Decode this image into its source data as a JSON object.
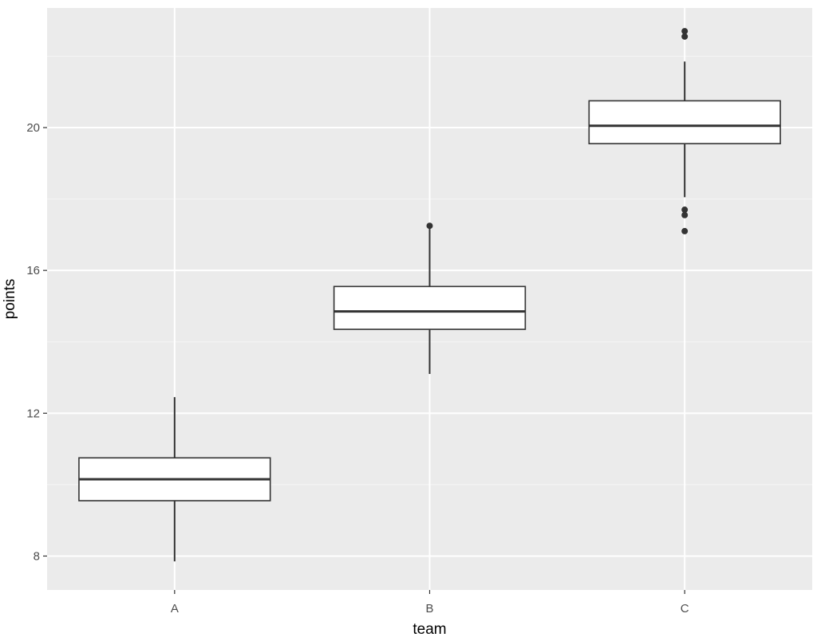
{
  "chart_data": {
    "type": "box",
    "xlabel": "team",
    "ylabel": "points",
    "ylim": [
      7.05,
      23.35
    ],
    "yticks": [
      8,
      12,
      16,
      20
    ],
    "y_minor_ticks": [
      10,
      14,
      18,
      22
    ],
    "grid": true,
    "legend": "none",
    "categories": [
      "A",
      "B",
      "C"
    ],
    "boxes": [
      {
        "category": "A",
        "whisker_low": 7.85,
        "q1": 9.55,
        "median": 10.15,
        "q3": 10.75,
        "whisker_high": 12.45,
        "outliers": []
      },
      {
        "category": "B",
        "whisker_low": 13.1,
        "q1": 14.35,
        "median": 14.85,
        "q3": 15.55,
        "whisker_high": 17.2,
        "outliers": [
          17.25
        ]
      },
      {
        "category": "C",
        "whisker_low": 18.05,
        "q1": 19.55,
        "median": 20.05,
        "q3": 20.75,
        "whisker_high": 21.85,
        "outliers": [
          22.7,
          22.55,
          17.7,
          17.55,
          17.1
        ]
      }
    ],
    "colors": {
      "panel_background": "#ebebeb",
      "grid_major": "#ffffff",
      "grid_minor": "#f5f5f5",
      "box_fill": "#ffffff",
      "box_line": "#333333",
      "outlier": "#333333"
    }
  }
}
